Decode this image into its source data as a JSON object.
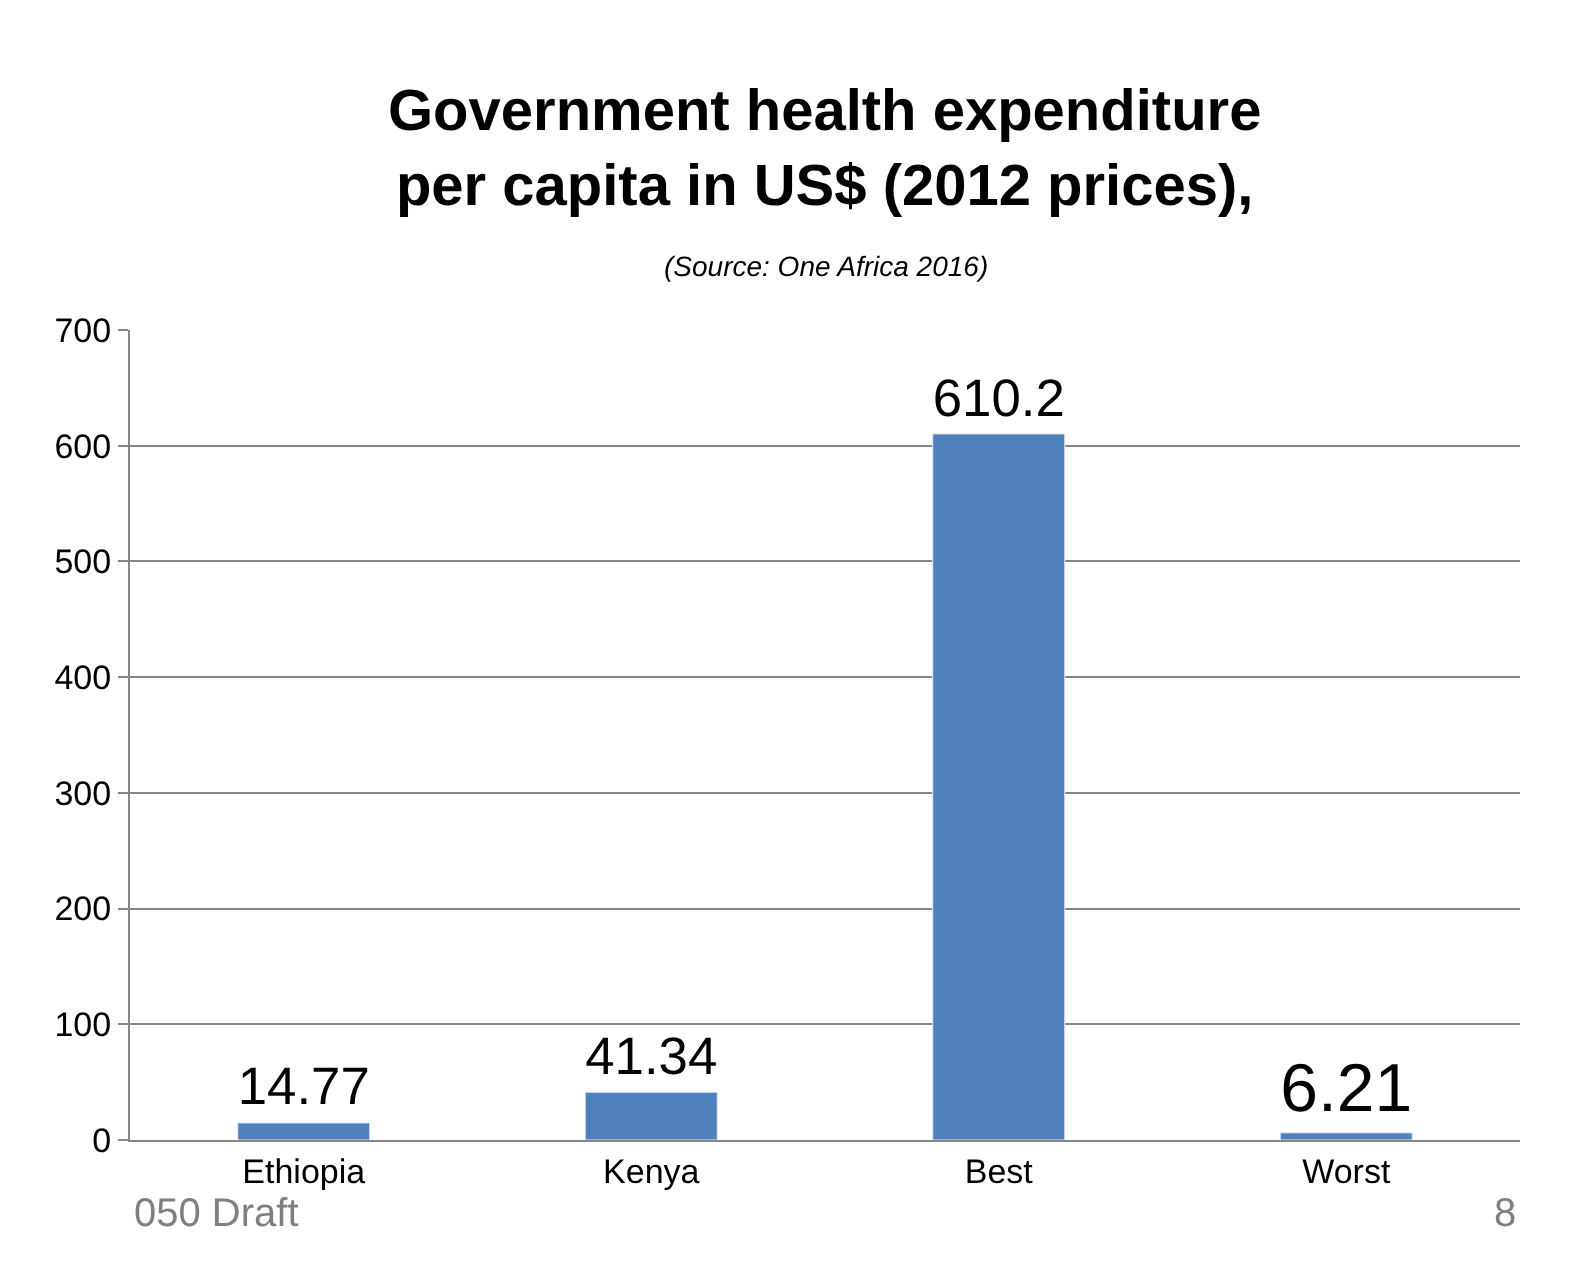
{
  "chart_data": {
    "type": "bar",
    "title": "Government health expenditure per capita in US$ (2012 prices),",
    "subtitle": "(Source: One Africa 2016)",
    "categories": [
      "Ethiopia",
      "Kenya",
      "Best",
      "Worst"
    ],
    "values": [
      14.77,
      41.34,
      610.2,
      6.21
    ],
    "color": "#4f81bd",
    "ylim": [
      0,
      700
    ],
    "yticks": [
      0,
      100,
      200,
      300,
      400,
      500,
      600,
      700
    ],
    "grid": "y",
    "legend": false,
    "data_labels": true,
    "annotations": [
      "050 Draft",
      "8"
    ]
  }
}
